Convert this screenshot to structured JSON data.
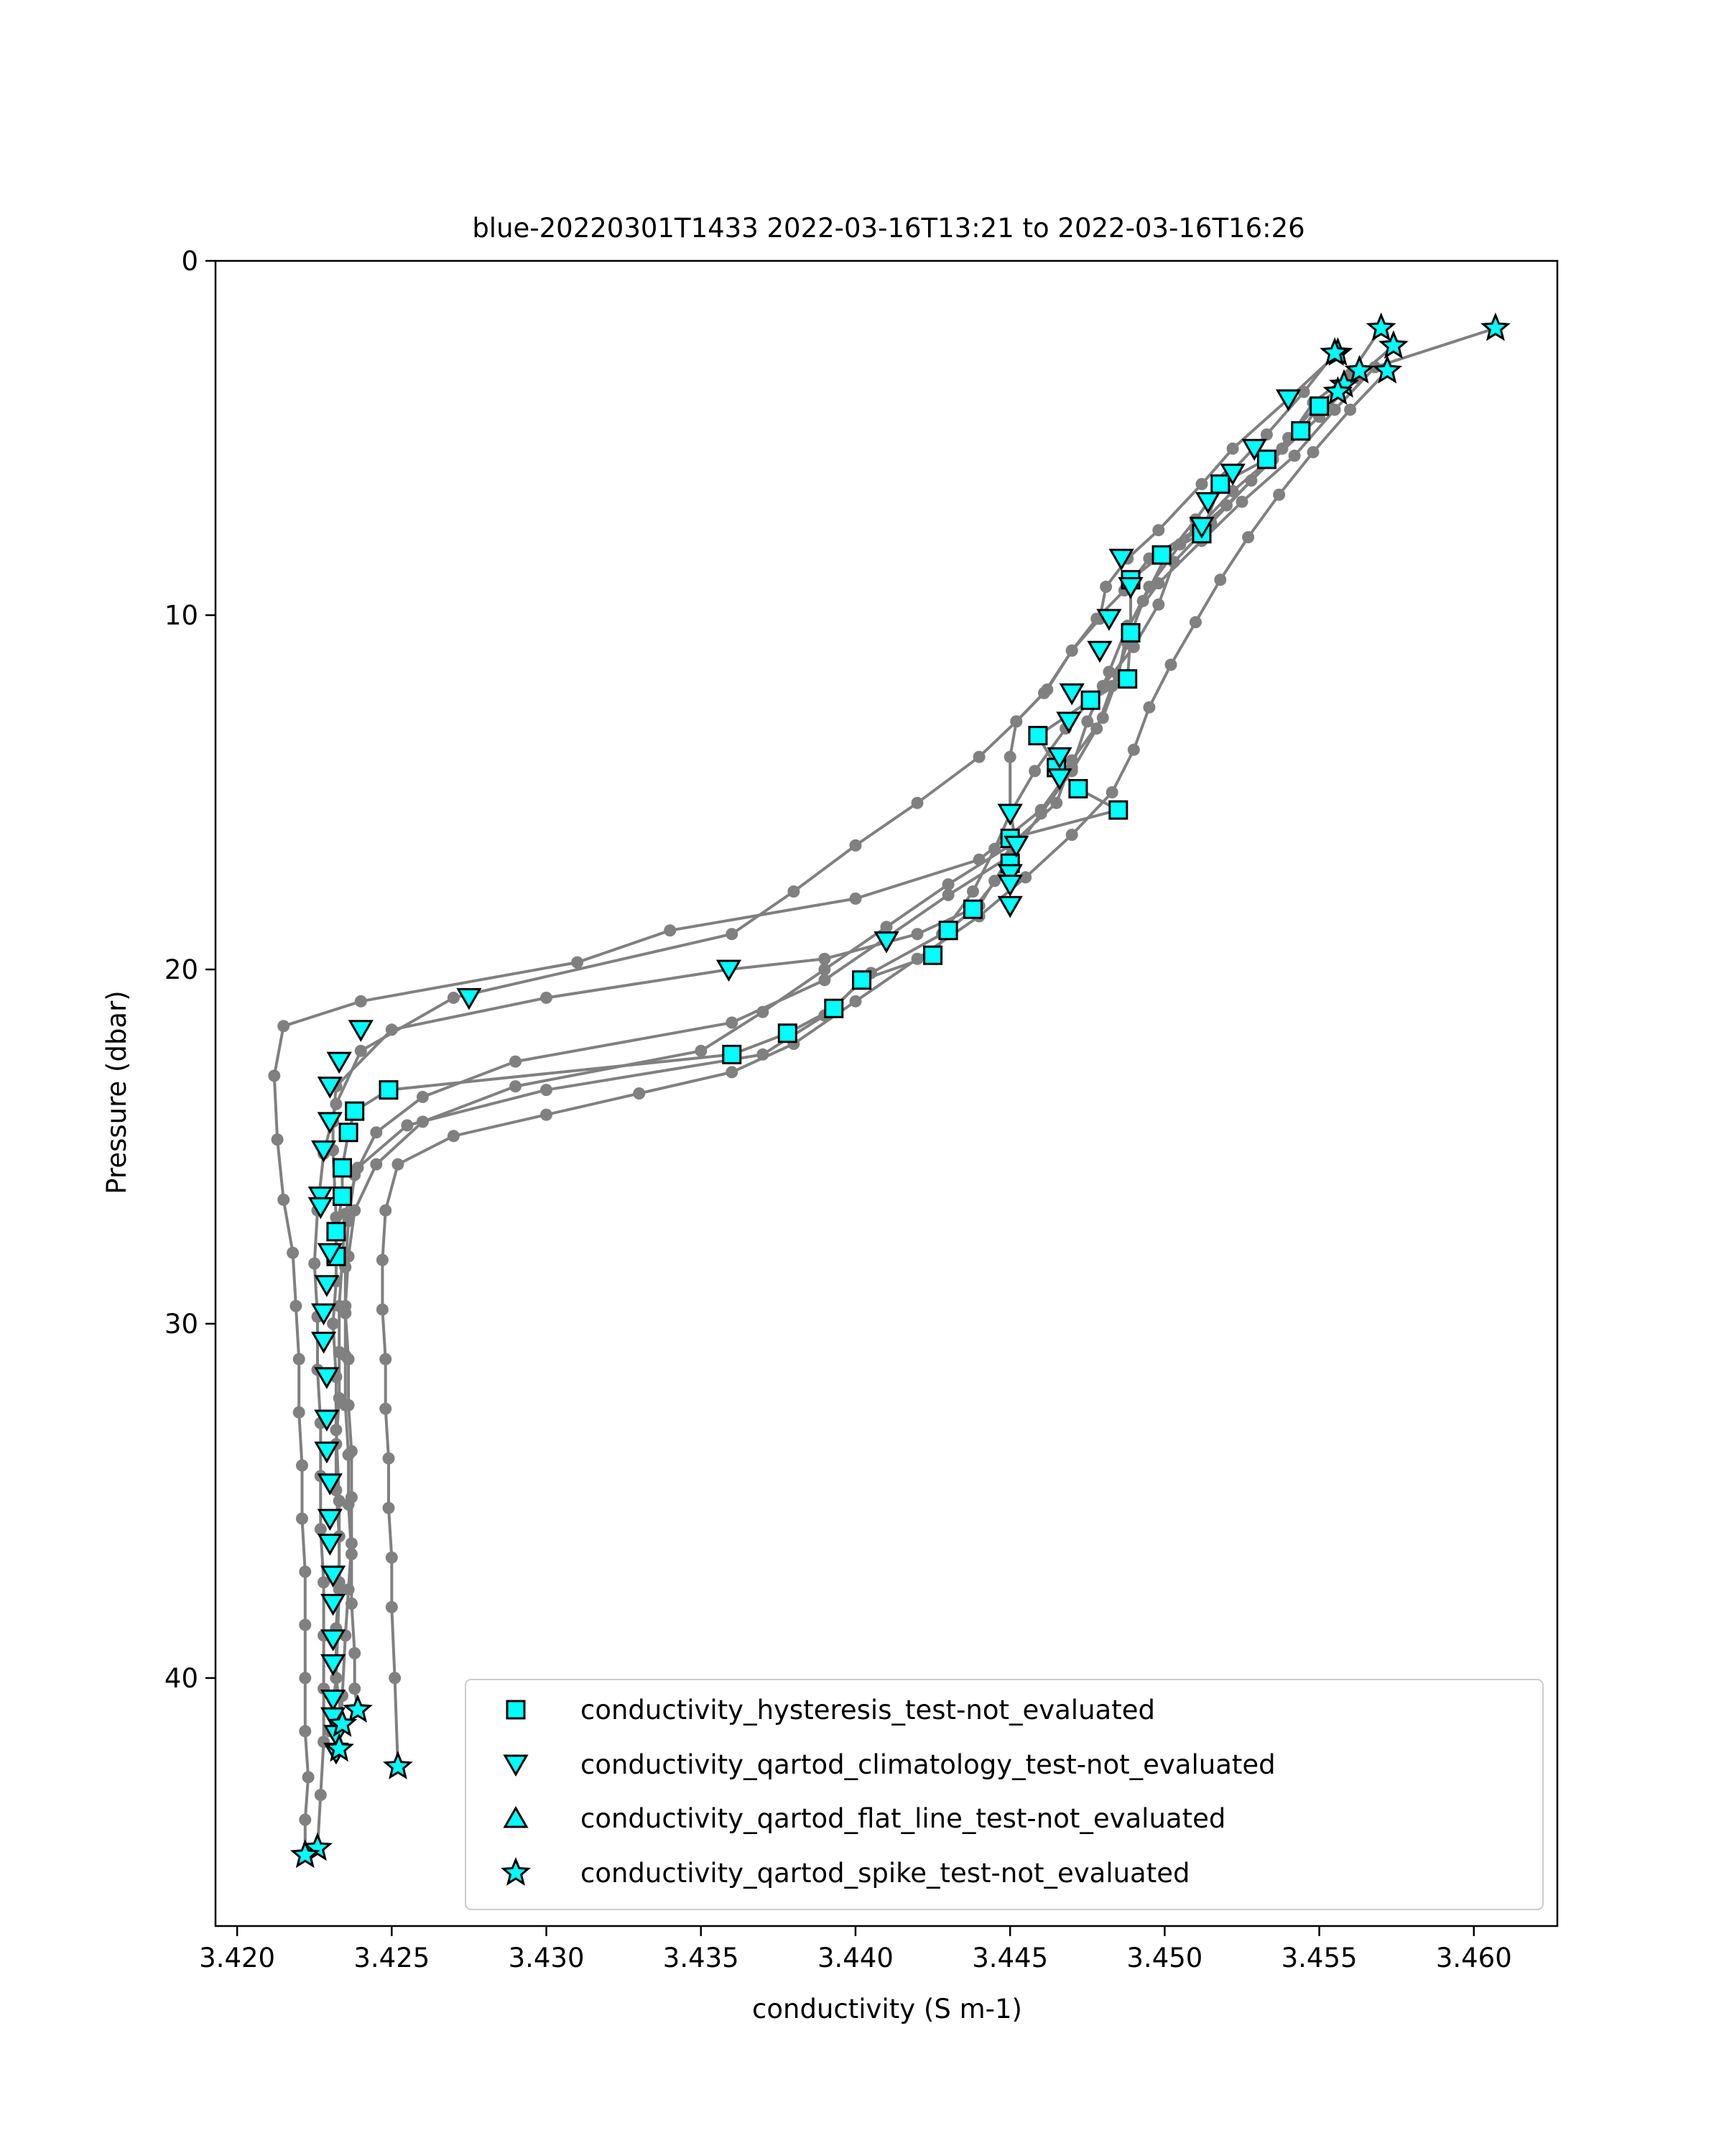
{
  "chart_data": {
    "type": "scatter",
    "title": "blue-20220301T1433 2022-03-16T13:21 to 2022-03-16T16:26",
    "xlabel": "conductivity (S m-1)",
    "ylabel": "Pressure (dbar)",
    "xlim": [
      3.4193,
      3.4627
    ],
    "ylim": [
      47,
      0
    ],
    "y_inverted": true,
    "grid": false,
    "x_ticks": [
      "3.420",
      "3.425",
      "3.430",
      "3.435",
      "3.440",
      "3.445",
      "3.450",
      "3.455",
      "3.460"
    ],
    "y_ticks": [
      "0",
      "10",
      "20",
      "30",
      "40"
    ],
    "x_tick_values": [
      3.42,
      3.425,
      3.43,
      3.435,
      3.44,
      3.445,
      3.45,
      3.455,
      3.46
    ],
    "y_tick_values": [
      0,
      10,
      20,
      30,
      40
    ],
    "legend_position": "lower-right",
    "colors": {
      "line": "#808080",
      "marker_fill": "#00ffff",
      "marker_edge": "#000000"
    },
    "profiles": [
      {
        "x": [
          3.4607,
          3.4568,
          3.4555,
          3.4542,
          3.4525,
          3.4512,
          3.4498,
          3.4488,
          3.4482,
          3.4475,
          3.447,
          3.446,
          3.444,
          3.44,
          3.434,
          3.431,
          3.424,
          3.4215,
          3.4212,
          3.4213,
          3.4215,
          3.4218,
          3.4219,
          3.422,
          3.422,
          3.4221,
          3.4221,
          3.4222,
          3.4222,
          3.4222,
          3.4222,
          3.4223,
          3.4222,
          3.4222
        ],
        "y": [
          1.9,
          3.0,
          4.2,
          5.5,
          6.8,
          7.9,
          9.1,
          10.3,
          11.6,
          13.0,
          14.3,
          15.5,
          16.9,
          18.0,
          18.9,
          19.8,
          20.9,
          21.6,
          23.0,
          24.8,
          26.5,
          28.0,
          29.5,
          31.0,
          32.5,
          34.0,
          35.5,
          37.0,
          38.5,
          40.0,
          41.5,
          42.8,
          44.0,
          45.0
        ]
      },
      {
        "x": [
          3.457,
          3.456,
          3.4548,
          3.4538,
          3.4522,
          3.451,
          3.4495,
          3.4487,
          3.4478,
          3.447,
          3.4462,
          3.4452,
          3.444,
          3.442,
          3.44,
          3.438,
          3.436,
          3.427,
          3.424,
          3.4232,
          3.4228,
          3.4226,
          3.4225,
          3.4226,
          3.4226,
          3.4227,
          3.4227,
          3.4227,
          3.4228,
          3.4228,
          3.4228,
          3.4228,
          3.4227,
          3.4226
        ],
        "y": [
          1.9,
          3.2,
          4.0,
          5.3,
          6.5,
          7.6,
          8.4,
          9.3,
          10.1,
          11.0,
          12.1,
          13.0,
          14.0,
          15.3,
          16.5,
          17.8,
          19.0,
          20.8,
          22.3,
          23.8,
          25.2,
          26.8,
          28.3,
          29.8,
          31.3,
          32.8,
          34.3,
          35.8,
          37.3,
          38.8,
          40.3,
          41.8,
          43.3,
          44.8
        ]
      },
      {
        "x": [
          3.4574,
          3.4562,
          3.455,
          3.4535,
          3.452,
          3.4505,
          3.4495,
          3.4488,
          3.4485,
          3.448,
          3.447,
          3.4465,
          3.445,
          3.443,
          3.441,
          3.439,
          3.437,
          3.435,
          3.429,
          3.426,
          3.4245,
          3.4238,
          3.4236,
          3.4235,
          3.4235,
          3.4235,
          3.4236,
          3.4236,
          3.4237,
          3.4237,
          3.4238,
          3.4238,
          3.4239
        ],
        "y": [
          2.4,
          3.3,
          4.4,
          5.6,
          6.9,
          8.0,
          9.2,
          10.4,
          11.7,
          12.9,
          14.1,
          15.3,
          16.5,
          17.6,
          18.8,
          20.0,
          21.2,
          22.3,
          23.3,
          24.3,
          25.5,
          26.8,
          28.1,
          29.5,
          30.9,
          32.3,
          33.7,
          35.1,
          36.5,
          37.9,
          39.3,
          40.3,
          40.9
        ]
      },
      {
        "x": [
          3.4572,
          3.456,
          3.4548,
          3.4537,
          3.4527,
          3.4518,
          3.451,
          3.4502,
          3.4495,
          3.449,
          3.4483,
          3.447,
          3.4455,
          3.444,
          3.442,
          3.44,
          3.438,
          3.436,
          3.433,
          3.43,
          3.427,
          3.4252,
          3.4248,
          3.4247,
          3.4247,
          3.4248,
          3.4248,
          3.4249,
          3.4249,
          3.425,
          3.425,
          3.4251,
          3.4252
        ],
        "y": [
          3.1,
          4.2,
          5.4,
          6.6,
          7.8,
          9.0,
          10.2,
          11.4,
          12.6,
          13.8,
          15.0,
          16.2,
          17.4,
          18.5,
          19.7,
          20.9,
          22.1,
          22.9,
          23.5,
          24.1,
          24.7,
          25.5,
          26.8,
          28.2,
          29.6,
          31.0,
          32.4,
          33.8,
          35.2,
          36.6,
          38.0,
          40.0,
          42.5
        ]
      },
      {
        "x": [
          3.4555,
          3.4545,
          3.4533,
          3.452,
          3.451,
          3.45,
          3.4493,
          3.4488,
          3.4483,
          3.4478,
          3.447,
          3.446,
          3.445,
          3.443,
          3.441,
          3.439,
          3.436,
          3.429,
          3.426,
          3.4245,
          3.4238,
          3.4236,
          3.4235,
          3.4235,
          3.4236,
          3.4236,
          3.4237,
          3.4237,
          3.4237,
          3.4236,
          3.4235,
          3.4234,
          3.4233
        ],
        "y": [
          2.6,
          3.7,
          4.9,
          6.1,
          7.3,
          8.4,
          9.6,
          10.8,
          12.0,
          13.2,
          14.4,
          15.6,
          16.8,
          17.9,
          19.1,
          20.3,
          21.5,
          22.6,
          23.6,
          24.6,
          25.8,
          27.1,
          28.4,
          29.7,
          31.0,
          32.3,
          33.6,
          34.9,
          36.2,
          37.5,
          38.8,
          40.5,
          42.0
        ]
      },
      {
        "x": [
          3.4558,
          3.4549,
          3.454,
          3.4528,
          3.4515,
          3.4503,
          3.4498,
          3.449,
          3.448,
          3.4468,
          3.4458,
          3.445,
          3.4445,
          3.4438,
          3.4428,
          3.4405,
          3.439,
          3.437,
          3.43,
          3.4255,
          3.4239,
          3.4235,
          3.4234,
          3.4233,
          3.4233,
          3.4233,
          3.4232,
          3.4232,
          3.4233,
          3.4233,
          3.4232,
          3.4232,
          3.4234
        ],
        "y": [
          3.5,
          4.1,
          5.0,
          6.2,
          7.4,
          8.5,
          9.7,
          10.9,
          12.0,
          13.2,
          14.4,
          15.6,
          16.6,
          17.8,
          19.0,
          20.1,
          21.3,
          22.4,
          23.4,
          24.4,
          25.6,
          26.9,
          28.2,
          29.5,
          30.8,
          32.1,
          33.4,
          34.7,
          36.0,
          37.3,
          38.6,
          40.0,
          41.3
        ]
      },
      {
        "x": [
          3.4556,
          3.454,
          3.4522,
          3.4512,
          3.4498,
          3.4488,
          3.4481,
          3.4479,
          3.447,
          3.4461,
          3.4452,
          3.445,
          3.445,
          3.4452,
          3.4445,
          3.444,
          3.442,
          3.439,
          3.4359,
          3.43,
          3.425,
          3.4232,
          3.4231,
          3.4231,
          3.4232,
          3.4232,
          3.4231,
          3.4232,
          3.4232,
          3.4233,
          3.4233,
          3.4232,
          3.423
        ],
        "y": [
          2.6,
          3.9,
          5.3,
          6.3,
          7.6,
          8.4,
          9.2,
          10.1,
          11.0,
          12.2,
          13.0,
          14.0,
          15.5,
          16.5,
          17.5,
          18.2,
          19.0,
          19.7,
          20.0,
          20.8,
          21.7,
          23.3,
          24.3,
          25.1,
          27.0,
          28.8,
          30.0,
          31.5,
          33.0,
          35.0,
          37.5,
          40.0,
          41.5
        ]
      },
      {
        "x": [
          3.455,
          3.4544,
          3.4533,
          3.4518,
          3.4512,
          3.4499,
          3.4489,
          3.4489,
          3.4488,
          3.4476,
          3.4459,
          3.4465,
          3.4472,
          3.4485,
          3.445,
          3.445,
          3.4438,
          3.443,
          3.4425,
          3.4402,
          3.4393,
          3.4378,
          3.436,
          3.4249,
          3.4238,
          3.4236,
          3.4234,
          3.4234,
          3.4232,
          3.4232
        ],
        "y": [
          4.1,
          4.8,
          5.6,
          6.3,
          7.7,
          8.3,
          9.0,
          10.5,
          11.8,
          12.4,
          13.4,
          14.3,
          14.9,
          15.5,
          16.3,
          17.0,
          18.3,
          18.9,
          19.6,
          20.3,
          21.1,
          21.8,
          22.4,
          23.4,
          24.0,
          24.6,
          25.6,
          26.4,
          27.4,
          28.1
        ]
      }
    ],
    "flagged_points": {
      "hysteresis": {
        "x": [
          3.455,
          3.4544,
          3.4533,
          3.4518,
          3.4512,
          3.4499,
          3.4489,
          3.4489,
          3.4488,
          3.4476,
          3.4459,
          3.4465,
          3.4472,
          3.4485,
          3.445,
          3.445,
          3.4438,
          3.443,
          3.4425,
          3.4402,
          3.4393,
          3.4378,
          3.436,
          3.4249,
          3.4238,
          3.4236,
          3.4234,
          3.4234,
          3.4232,
          3.4232
        ],
        "y": [
          4.1,
          4.8,
          5.6,
          6.3,
          7.7,
          8.3,
          9.0,
          10.5,
          11.8,
          12.4,
          13.4,
          14.3,
          14.9,
          15.5,
          16.3,
          17.0,
          18.3,
          18.9,
          19.6,
          20.3,
          21.1,
          21.8,
          22.4,
          23.4,
          24.0,
          24.6,
          25.6,
          26.4,
          27.4,
          28.1
        ]
      },
      "climatology": {
        "x": [
          3.454,
          3.4529,
          3.4522,
          3.4514,
          3.4512,
          3.4486,
          3.4489,
          3.4482,
          3.4479,
          3.447,
          3.4469,
          3.4466,
          3.4466,
          3.445,
          3.4452,
          3.445,
          3.445,
          3.445,
          3.441,
          3.4359,
          3.4275,
          3.424,
          3.4233,
          3.423,
          3.423,
          3.4228,
          3.4227,
          3.4227,
          3.423,
          3.4229,
          3.4228,
          3.4228,
          3.4229,
          3.4229,
          3.4229,
          3.423,
          3.423,
          3.423,
          3.4231,
          3.4231,
          3.4231,
          3.4231,
          3.4231,
          3.4231,
          3.4232,
          3.4232
        ],
        "y": [
          3.9,
          5.3,
          6.0,
          6.8,
          7.5,
          8.4,
          9.2,
          10.1,
          11.0,
          12.2,
          13.0,
          14.0,
          14.6,
          15.6,
          16.5,
          17.3,
          17.6,
          18.2,
          19.2,
          20.0,
          20.8,
          21.7,
          22.6,
          23.3,
          24.3,
          25.1,
          26.4,
          26.7,
          28.0,
          28.9,
          29.7,
          30.5,
          31.5,
          32.7,
          33.6,
          34.5,
          35.5,
          36.2,
          37.1,
          37.9,
          38.9,
          39.6,
          40.6,
          41.1,
          41.6,
          42.1
        ]
      },
      "spike": {
        "x": [
          3.4607,
          3.457,
          3.4574,
          3.4556,
          3.4572,
          3.4558,
          3.4555,
          3.4563,
          3.4556,
          3.4239,
          3.4233,
          3.4252,
          3.4234,
          3.4226,
          3.4222
        ],
        "y": [
          1.9,
          1.9,
          2.4,
          2.6,
          3.1,
          3.5,
          2.6,
          3.1,
          3.7,
          40.9,
          42.0,
          42.5,
          41.3,
          44.8,
          45.0
        ]
      }
    },
    "series": [
      {
        "name": "conductivity_hysteresis_test-not_evaluated",
        "marker": "square"
      },
      {
        "name": "conductivity_qartod_climatology_test-not_evaluated",
        "marker": "triangle-down"
      },
      {
        "name": "conductivity_qartod_flat_line_test-not_evaluated",
        "marker": "triangle-up"
      },
      {
        "name": "conductivity_qartod_spike_test-not_evaluated",
        "marker": "star"
      }
    ]
  }
}
